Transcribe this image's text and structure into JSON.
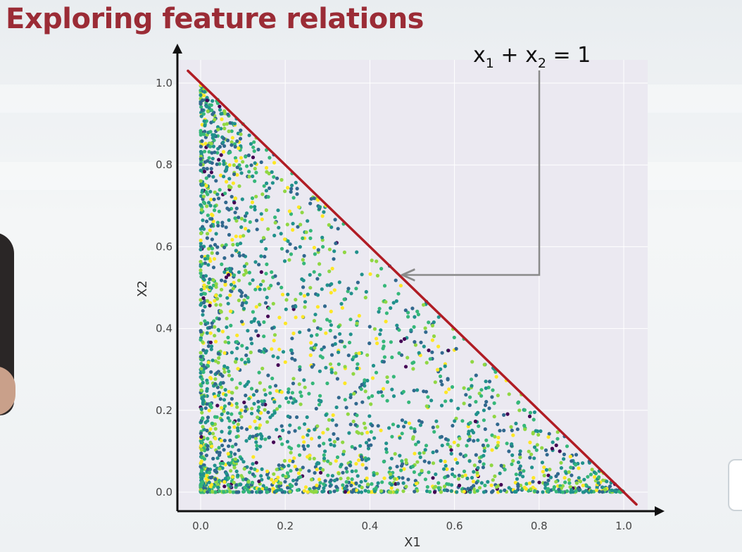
{
  "slide": {
    "title": "Exploring feature relations"
  },
  "chart_data": {
    "type": "scatter",
    "title": "",
    "xlabel": "X1",
    "ylabel": "X2",
    "xlim": [
      -0.05,
      1.05
    ],
    "ylim": [
      -0.05,
      1.05
    ],
    "xticks": [
      0.0,
      0.2,
      0.4,
      0.6,
      0.8,
      1.0
    ],
    "yticks": [
      0.0,
      0.2,
      0.4,
      0.6,
      0.8,
      1.0
    ],
    "xtick_labels": [
      "0.0",
      "0.2",
      "0.4",
      "0.6",
      "0.8",
      "1.0"
    ],
    "ytick_labels": [
      "0.0",
      "0.2",
      "0.4",
      "0.6",
      "0.8",
      "1.0"
    ],
    "grid": true,
    "colormap": "viridis",
    "colors": [
      "#440154",
      "#31688e",
      "#21918c",
      "#35b779",
      "#90d743",
      "#fde725"
    ],
    "point_count": 2500,
    "constraint": "X1 + X2 <= 1",
    "reference_line": {
      "from": [
        -0.03,
        1.03
      ],
      "to": [
        1.03,
        -0.03
      ],
      "color": "#b01c24"
    },
    "annotation": {
      "text_base_1": "x",
      "text_sub_1": "1",
      "text_op": " + ",
      "text_base_2": "x",
      "text_sub_2": "2",
      "text_eq": " = 1",
      "points_to": [
        0.45,
        0.55
      ]
    },
    "plot_background": "#ebe9f1"
  }
}
